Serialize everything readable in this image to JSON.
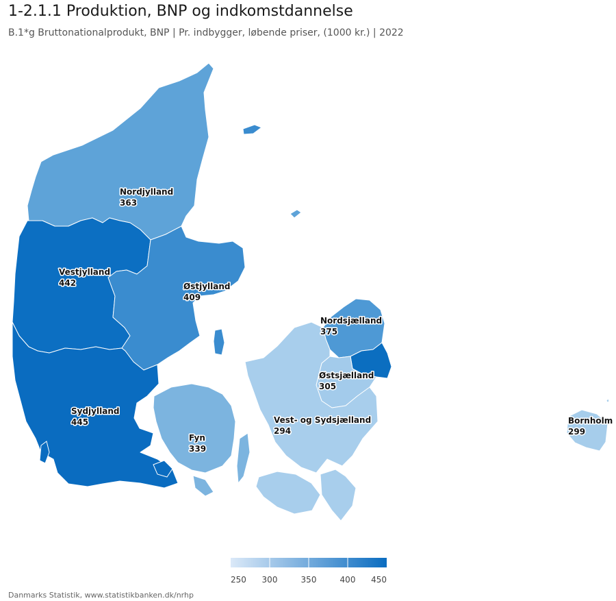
{
  "header": {
    "title": "1-2.1.1 Produktion, BNP og indkomstdannelse",
    "subtitle": "B.1*g Bruttonationalprodukt, BNP | Pr. indbygger, løbende priser, (1000 kr.) | 2022"
  },
  "regions": [
    {
      "key": "nordjylland",
      "name": "Nordjylland",
      "value": "363",
      "color": "#5ea3d8"
    },
    {
      "key": "vestjylland",
      "name": "Vestjylland",
      "value": "442",
      "color": "#0c6fc2"
    },
    {
      "key": "ostjylland",
      "name": "Østjylland",
      "value": "409",
      "color": "#3a8ccf"
    },
    {
      "key": "sydjylland",
      "name": "Sydjylland",
      "value": "445",
      "color": "#0a6cc0"
    },
    {
      "key": "fyn",
      "name": "Fyn",
      "value": "339",
      "color": "#7cb4df"
    },
    {
      "key": "nordsjaelland",
      "name": "Nordsjælland",
      "value": "375",
      "color": "#4e99d5"
    },
    {
      "key": "ostsjaelland",
      "name": "Østsjælland",
      "value": "305",
      "color": "#a3cbeb"
    },
    {
      "key": "byen",
      "name": "",
      "value": "",
      "color": "#0b6ec0"
    },
    {
      "key": "vestsjaelland",
      "name": "Vest- og Sydsjælland",
      "value": "294",
      "color": "#a8ceec"
    },
    {
      "key": "bornholm",
      "name": "Bornholm",
      "value": "299",
      "color": "#a6cdeb"
    }
  ],
  "legend": {
    "min": 250,
    "max": 450,
    "ticks": [
      "250",
      "300",
      "350",
      "400",
      "450"
    ],
    "color_low": "#dbe9f8",
    "color_high": "#0a6cc0"
  },
  "footer": "Danmarks Statistik, www.statistikbanken.dk/nrhp"
}
